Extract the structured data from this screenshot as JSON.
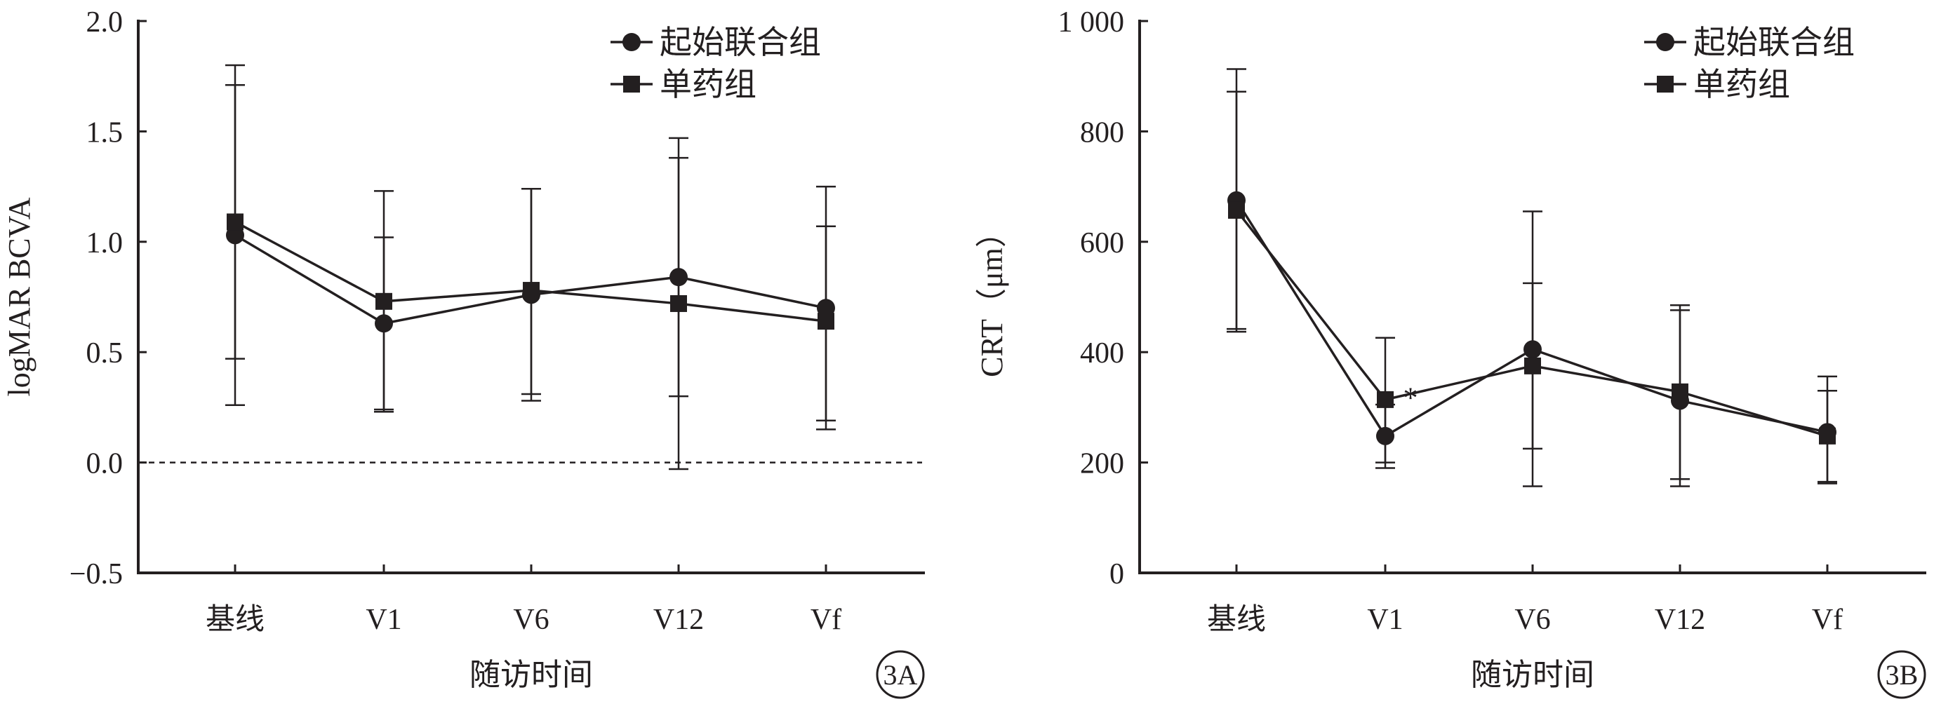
{
  "chart_data": [
    {
      "type": "line",
      "panel_label": "3A",
      "xlabel": "随访时间",
      "ylabel": "logMAR BCVA",
      "categories": [
        "基线",
        "V1",
        "V6",
        "V12",
        "Vf"
      ],
      "ylim": [
        -0.5,
        2.0
      ],
      "yticks": [
        -0.5,
        0.0,
        0.5,
        1.0,
        1.5,
        2.0
      ],
      "ytick_labels": [
        "−0.5",
        "0.0",
        "0.5",
        "1.0",
        "1.5",
        "2.0"
      ],
      "reference_line": {
        "y": 0.0,
        "style": "dashed"
      },
      "legend_position": "top-right",
      "series": [
        {
          "name": "起始联合组",
          "marker": "circle",
          "values": [
            1.03,
            0.63,
            0.76,
            0.84,
            0.7
          ],
          "error_upper": [
            1.71,
            1.02,
            1.24,
            1.38,
            1.07
          ],
          "error_lower": [
            0.26,
            0.24,
            0.28,
            0.3,
            0.19
          ]
        },
        {
          "name": "单药组",
          "marker": "square",
          "values": [
            1.09,
            0.73,
            0.78,
            0.72,
            0.64
          ],
          "error_upper": [
            1.8,
            1.23,
            1.24,
            1.47,
            1.25
          ],
          "error_lower": [
            0.47,
            0.23,
            0.31,
            -0.03,
            0.15
          ]
        }
      ],
      "annotations": []
    },
    {
      "type": "line",
      "panel_label": "3B",
      "xlabel": "随访时间",
      "ylabel": "CRT（μm）",
      "categories": [
        "基线",
        "V1",
        "V6",
        "V12",
        "Vf"
      ],
      "ylim": [
        0,
        1000
      ],
      "yticks": [
        0,
        200,
        400,
        600,
        800,
        1000
      ],
      "ytick_labels": [
        "0",
        "200",
        "400",
        "600",
        "800",
        "1 000"
      ],
      "legend_position": "top-right",
      "series": [
        {
          "name": "起始联合组",
          "marker": "circle",
          "values": [
            675,
            248,
            405,
            312,
            255
          ],
          "error_upper": [
            913,
            305,
            655,
            476,
            330
          ],
          "error_lower": [
            437,
            190,
            157,
            170,
            165
          ]
        },
        {
          "name": "单药组",
          "marker": "square",
          "values": [
            657,
            314,
            375,
            328,
            248
          ],
          "error_upper": [
            872,
            426,
            525,
            485,
            356
          ],
          "error_lower": [
            442,
            200,
            225,
            157,
            162
          ]
        }
      ],
      "annotations": [
        {
          "text": "*",
          "category": "V1",
          "y": 335
        }
      ]
    }
  ]
}
